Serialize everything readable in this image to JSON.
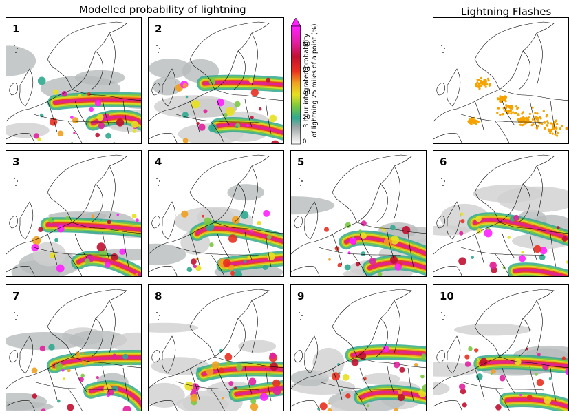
{
  "titles": {
    "modelled": "Modelled probability of lightning",
    "observed": "Lightning Flashes"
  },
  "colorbar": {
    "label_line1": "3 hour integrated probability",
    "label_line2": "of lightning 25 miles of a point (%)",
    "ticks": [
      "80",
      "60",
      "40",
      "20",
      "0"
    ],
    "range": [
      0,
      100
    ],
    "colors": [
      "#ffffff",
      "#c8c8c8",
      "#9aa0a0",
      "#30a890",
      "#7ac840",
      "#e8e020",
      "#f0a020",
      "#e83020",
      "#c01020",
      "#e020a0",
      "#ff20ff"
    ]
  },
  "panels": [
    {
      "label": "1"
    },
    {
      "label": "2"
    },
    {
      "label": "3"
    },
    {
      "label": "4"
    },
    {
      "label": "5"
    },
    {
      "label": "6"
    },
    {
      "label": "7"
    },
    {
      "label": "8"
    },
    {
      "label": "9"
    },
    {
      "label": "10"
    }
  ],
  "colors": {
    "flashes": "#f5a300",
    "coast": "#000000"
  }
}
